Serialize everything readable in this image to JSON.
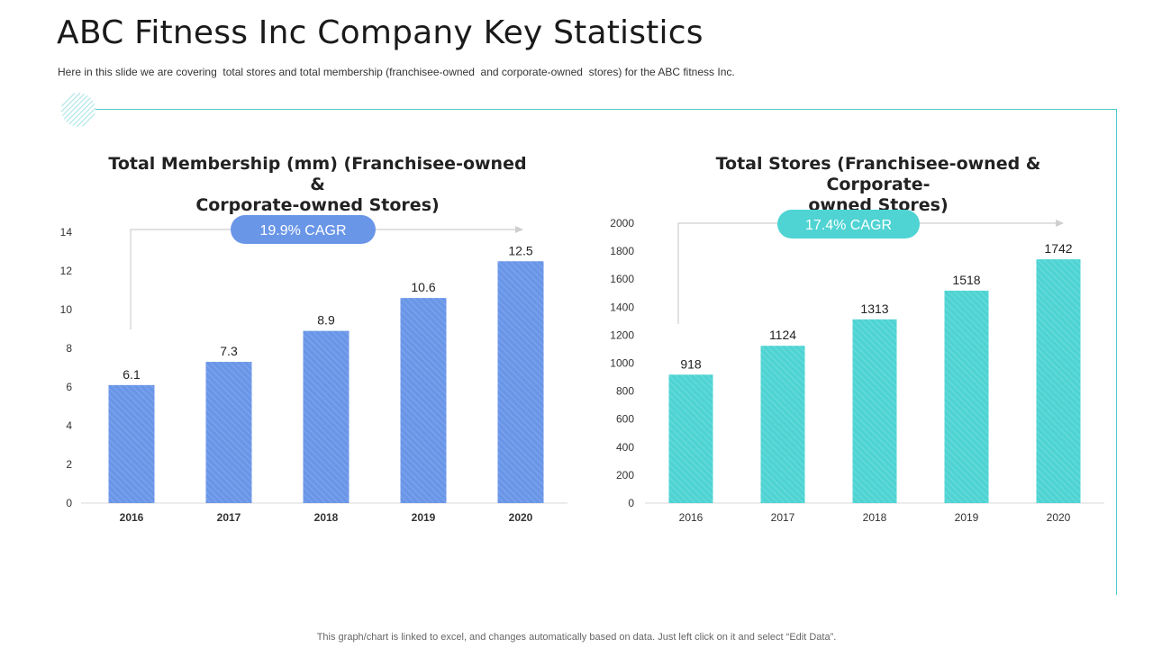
{
  "slide": {
    "title": "ABC Fitness Inc Company Key Statistics",
    "subtitle": "Here in this slide we are covering  total stores and total membership (franchisee-owned  and corporate-owned  stores) for the ABC fitness Inc.",
    "footer": "This graph/chart is linked to excel,  and changes automatically based on data. Just left click on it and select “Edit Data”.",
    "accent_color": "#4fc8cc"
  },
  "chart_data": [
    {
      "type": "bar",
      "title": "Total Membership (mm) (Franchisee-owned & Corporate-owned Stores)",
      "title_lines": [
        "Total Membership (mm) (Franchisee-owned &",
        "Corporate-owned Stores)"
      ],
      "categories": [
        "2016",
        "2017",
        "2018",
        "2019",
        "2020"
      ],
      "values": [
        6.1,
        7.3,
        8.9,
        10.6,
        12.5
      ],
      "value_labels": [
        "6.1",
        "7.3",
        "8.9",
        "10.6",
        "12.5"
      ],
      "yticks": [
        "0",
        "2",
        "4",
        "6",
        "8",
        "10",
        "12",
        "14"
      ],
      "ylim": [
        0,
        14
      ],
      "xlabel": "",
      "ylabel": "",
      "grid": false,
      "bar_color": "#6a96e8",
      "cagr_label": "19.9% CAGR",
      "cagr_color": "#6a96e8"
    },
    {
      "type": "bar",
      "title": "Total Stores (Franchisee-owned & Corporate-owned Stores)",
      "title_lines": [
        "Total Stores (Franchisee-owned & Corporate-",
        "owned Stores)"
      ],
      "categories": [
        "2016",
        "2017",
        "2018",
        "2019",
        "2020"
      ],
      "values": [
        918,
        1124,
        1313,
        1518,
        1742
      ],
      "value_labels": [
        "918",
        "1124",
        "1313",
        "1518",
        "1742"
      ],
      "yticks": [
        "0",
        "200",
        "400",
        "600",
        "800",
        "1000",
        "1200",
        "1400",
        "1600",
        "1800",
        "2000"
      ],
      "ylim": [
        0,
        2000
      ],
      "xlabel": "",
      "ylabel": "",
      "grid": false,
      "bar_color": "#4fd3d3",
      "cagr_label": "17.4% CAGR",
      "cagr_color": "#4fd3d3"
    }
  ]
}
